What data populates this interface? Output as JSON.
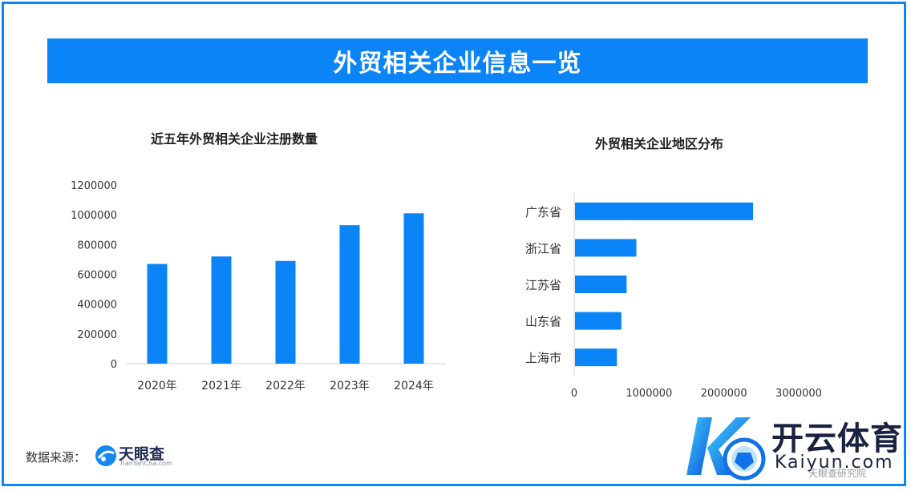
{
  "header": {
    "title": "外贸相关企业信息一览"
  },
  "colors": {
    "accent": "#0a84f7",
    "bar": "#0a84f7",
    "frame": "#0a86f5"
  },
  "chart_data": [
    {
      "type": "bar",
      "title": "近五年外贸相关企业注册数量",
      "categories": [
        "2020年",
        "2021年",
        "2022年",
        "2023年",
        "2024年"
      ],
      "values": [
        670000,
        720000,
        690000,
        930000,
        1010000
      ],
      "ylim": [
        0,
        1200000
      ],
      "yticks": [
        "0",
        "200000",
        "400000",
        "600000",
        "800000",
        "1000000",
        "1200000"
      ],
      "grid": false
    },
    {
      "type": "bar",
      "orientation": "horizontal",
      "title": "外贸相关企业地区分布",
      "categories": [
        "广东省",
        "浙江省",
        "江苏省",
        "山东省",
        "上海市"
      ],
      "values": [
        2380000,
        820000,
        690000,
        620000,
        560000
      ],
      "xlim": [
        0,
        3000000
      ],
      "xticks": [
        "0",
        "1000000",
        "2000000",
        "3000000"
      ],
      "grid": false
    }
  ],
  "footer": {
    "source_label": "数据来源：",
    "source_logo": {
      "name": "天眼查",
      "sub": "TianYanCha.com",
      "icon": "tianyancha-logo-icon"
    }
  },
  "watermark": {
    "brand": "开云体育",
    "domain": "Kaiyun.com",
    "org": "天眼查研究院",
    "icon": "kaiyun-logo-icon"
  }
}
